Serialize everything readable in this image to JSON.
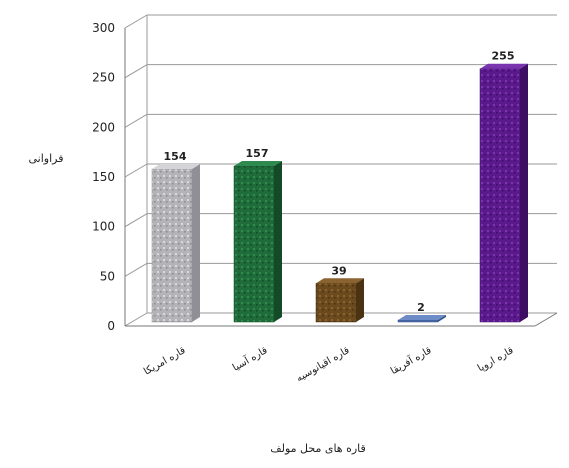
{
  "chart_data": {
    "type": "bar",
    "style": "3d-column",
    "categories": [
      "قاره امریکا",
      "قاره آسیا",
      "قاره اقیانوسیه",
      "قاره آفریقا",
      "قاره اروپا"
    ],
    "values": [
      154,
      157,
      39,
      2,
      255
    ],
    "data_labels": [
      "154",
      "157",
      "39",
      "2",
      "255"
    ],
    "title": "",
    "xlabel": "قاره های محل مولف",
    "ylabel": "فراوانی",
    "ylim": [
      0,
      300
    ],
    "yticks": [
      "0",
      "50",
      "100",
      "150",
      "200",
      "250",
      "300"
    ],
    "grid": true,
    "legend": "none",
    "colors": [
      "#b9b9bd",
      "#1f6b3a",
      "#6b4a1e",
      "#4b6aa8",
      "#5a1a8c"
    ]
  }
}
